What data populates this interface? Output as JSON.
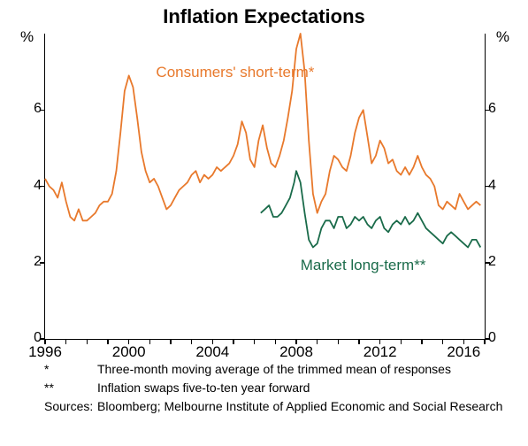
{
  "title": "Inflation Expectations",
  "y_unit": "%",
  "ylim": [
    0,
    8
  ],
  "ytick_values": [
    0,
    2,
    4,
    6
  ],
  "xlim": [
    1996,
    2017
  ],
  "xtick_values": [
    1996,
    2000,
    2004,
    2008,
    2012,
    2016
  ],
  "background_color": "#ffffff",
  "axis_color": "#000000",
  "title_fontsize": 22,
  "label_fontsize": 16,
  "series": {
    "consumers": {
      "label": "Consumers' short-term*",
      "color": "#e8792c",
      "label_pos_year": 2001.3,
      "label_pos_value": 7.0,
      "data": [
        [
          1996.0,
          4.2
        ],
        [
          1996.2,
          4.0
        ],
        [
          1996.4,
          3.9
        ],
        [
          1996.6,
          3.7
        ],
        [
          1996.8,
          4.1
        ],
        [
          1997.0,
          3.6
        ],
        [
          1997.2,
          3.2
        ],
        [
          1997.4,
          3.1
        ],
        [
          1997.6,
          3.4
        ],
        [
          1997.8,
          3.1
        ],
        [
          1998.0,
          3.1
        ],
        [
          1998.2,
          3.2
        ],
        [
          1998.4,
          3.3
        ],
        [
          1998.6,
          3.5
        ],
        [
          1998.8,
          3.6
        ],
        [
          1999.0,
          3.6
        ],
        [
          1999.2,
          3.8
        ],
        [
          1999.4,
          4.4
        ],
        [
          1999.6,
          5.4
        ],
        [
          1999.8,
          6.5
        ],
        [
          2000.0,
          6.9
        ],
        [
          2000.2,
          6.6
        ],
        [
          2000.4,
          5.8
        ],
        [
          2000.6,
          4.9
        ],
        [
          2000.8,
          4.4
        ],
        [
          2001.0,
          4.1
        ],
        [
          2001.2,
          4.2
        ],
        [
          2001.4,
          4.0
        ],
        [
          2001.6,
          3.7
        ],
        [
          2001.8,
          3.4
        ],
        [
          2002.0,
          3.5
        ],
        [
          2002.2,
          3.7
        ],
        [
          2002.4,
          3.9
        ],
        [
          2002.6,
          4.0
        ],
        [
          2002.8,
          4.1
        ],
        [
          2003.0,
          4.3
        ],
        [
          2003.2,
          4.4
        ],
        [
          2003.4,
          4.1
        ],
        [
          2003.6,
          4.3
        ],
        [
          2003.8,
          4.2
        ],
        [
          2004.0,
          4.3
        ],
        [
          2004.2,
          4.5
        ],
        [
          2004.4,
          4.4
        ],
        [
          2004.6,
          4.5
        ],
        [
          2004.8,
          4.6
        ],
        [
          2005.0,
          4.8
        ],
        [
          2005.2,
          5.1
        ],
        [
          2005.4,
          5.7
        ],
        [
          2005.6,
          5.4
        ],
        [
          2005.8,
          4.7
        ],
        [
          2006.0,
          4.5
        ],
        [
          2006.2,
          5.2
        ],
        [
          2006.4,
          5.6
        ],
        [
          2006.6,
          5.0
        ],
        [
          2006.8,
          4.6
        ],
        [
          2007.0,
          4.5
        ],
        [
          2007.2,
          4.8
        ],
        [
          2007.4,
          5.2
        ],
        [
          2007.6,
          5.8
        ],
        [
          2007.8,
          6.5
        ],
        [
          2008.0,
          7.6
        ],
        [
          2008.2,
          8.0
        ],
        [
          2008.4,
          7.0
        ],
        [
          2008.6,
          5.2
        ],
        [
          2008.8,
          3.8
        ],
        [
          2009.0,
          3.3
        ],
        [
          2009.2,
          3.6
        ],
        [
          2009.4,
          3.8
        ],
        [
          2009.6,
          4.4
        ],
        [
          2009.8,
          4.8
        ],
        [
          2010.0,
          4.7
        ],
        [
          2010.2,
          4.5
        ],
        [
          2010.4,
          4.4
        ],
        [
          2010.6,
          4.8
        ],
        [
          2010.8,
          5.4
        ],
        [
          2011.0,
          5.8
        ],
        [
          2011.2,
          6.0
        ],
        [
          2011.4,
          5.3
        ],
        [
          2011.6,
          4.6
        ],
        [
          2011.8,
          4.8
        ],
        [
          2012.0,
          5.2
        ],
        [
          2012.2,
          5.0
        ],
        [
          2012.4,
          4.6
        ],
        [
          2012.6,
          4.7
        ],
        [
          2012.8,
          4.4
        ],
        [
          2013.0,
          4.3
        ],
        [
          2013.2,
          4.5
        ],
        [
          2013.4,
          4.3
        ],
        [
          2013.6,
          4.5
        ],
        [
          2013.8,
          4.8
        ],
        [
          2014.0,
          4.5
        ],
        [
          2014.2,
          4.3
        ],
        [
          2014.4,
          4.2
        ],
        [
          2014.6,
          4.0
        ],
        [
          2014.8,
          3.5
        ],
        [
          2015.0,
          3.4
        ],
        [
          2015.2,
          3.6
        ],
        [
          2015.4,
          3.5
        ],
        [
          2015.6,
          3.4
        ],
        [
          2015.8,
          3.8
        ],
        [
          2016.0,
          3.6
        ],
        [
          2016.2,
          3.4
        ],
        [
          2016.4,
          3.5
        ],
        [
          2016.6,
          3.6
        ],
        [
          2016.8,
          3.5
        ]
      ]
    },
    "market": {
      "label": "Market long-term**",
      "color": "#1a6b4a",
      "label_pos_year": 2008.2,
      "label_pos_value": 1.95,
      "data": [
        [
          2006.3,
          3.3
        ],
        [
          2006.5,
          3.4
        ],
        [
          2006.7,
          3.5
        ],
        [
          2006.9,
          3.2
        ],
        [
          2007.1,
          3.2
        ],
        [
          2007.3,
          3.3
        ],
        [
          2007.5,
          3.5
        ],
        [
          2007.7,
          3.7
        ],
        [
          2007.9,
          4.1
        ],
        [
          2008.0,
          4.4
        ],
        [
          2008.2,
          4.1
        ],
        [
          2008.4,
          3.3
        ],
        [
          2008.6,
          2.6
        ],
        [
          2008.8,
          2.4
        ],
        [
          2009.0,
          2.5
        ],
        [
          2009.2,
          2.9
        ],
        [
          2009.4,
          3.1
        ],
        [
          2009.6,
          3.1
        ],
        [
          2009.8,
          2.9
        ],
        [
          2010.0,
          3.2
        ],
        [
          2010.2,
          3.2
        ],
        [
          2010.4,
          2.9
        ],
        [
          2010.6,
          3.0
        ],
        [
          2010.8,
          3.2
        ],
        [
          2011.0,
          3.1
        ],
        [
          2011.2,
          3.2
        ],
        [
          2011.4,
          3.0
        ],
        [
          2011.6,
          2.9
        ],
        [
          2011.8,
          3.1
        ],
        [
          2012.0,
          3.2
        ],
        [
          2012.2,
          2.9
        ],
        [
          2012.4,
          2.8
        ],
        [
          2012.6,
          3.0
        ],
        [
          2012.8,
          3.1
        ],
        [
          2013.0,
          3.0
        ],
        [
          2013.2,
          3.2
        ],
        [
          2013.4,
          3.0
        ],
        [
          2013.6,
          3.1
        ],
        [
          2013.8,
          3.3
        ],
        [
          2014.0,
          3.1
        ],
        [
          2014.2,
          2.9
        ],
        [
          2014.4,
          2.8
        ],
        [
          2014.6,
          2.7
        ],
        [
          2014.8,
          2.6
        ],
        [
          2015.0,
          2.5
        ],
        [
          2015.2,
          2.7
        ],
        [
          2015.4,
          2.8
        ],
        [
          2015.6,
          2.7
        ],
        [
          2015.8,
          2.6
        ],
        [
          2016.0,
          2.5
        ],
        [
          2016.2,
          2.4
        ],
        [
          2016.4,
          2.6
        ],
        [
          2016.6,
          2.6
        ],
        [
          2016.8,
          2.4
        ]
      ]
    }
  },
  "footnotes": [
    {
      "marker": "*",
      "text": "Three-month moving average of the trimmed mean of responses"
    },
    {
      "marker": "**",
      "text": "Inflation swaps five-to-ten year forward"
    },
    {
      "marker": "Sources:",
      "text": "Bloomberg; Melbourne Institute of Applied Economic and Social Research"
    }
  ]
}
